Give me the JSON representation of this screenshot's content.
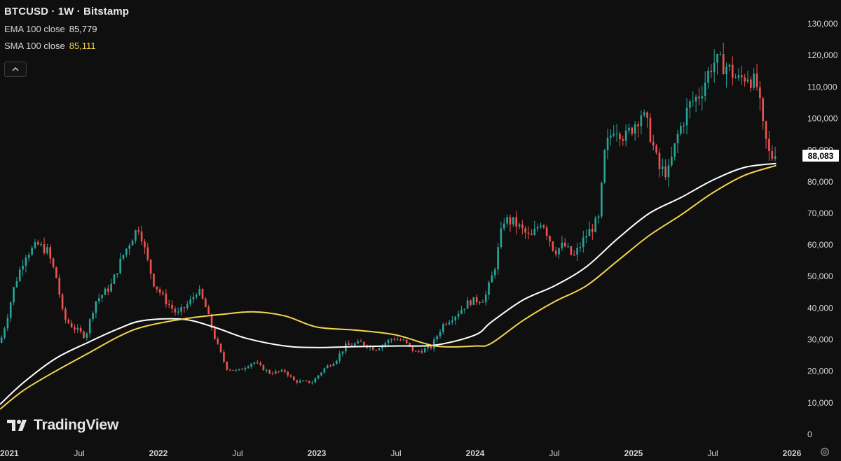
{
  "legend": {
    "title": "BTCUSD · 1W · Bitstamp",
    "ema_label": "EMA 100 close",
    "ema_value": "85,779",
    "sma_label": "SMA 100 close",
    "sma_value": "85,111"
  },
  "logo_text": "TradingView",
  "current_price_label": "88,083",
  "colors": {
    "background": "#0f0f0f",
    "up": "#26a69a",
    "down": "#ef5350",
    "ema": "#ffffff",
    "sma": "#f3d54e",
    "axis_text": "#d1d4dc"
  },
  "chart_data": {
    "type": "candlestick",
    "title": "BTCUSD · 1W · Bitstamp",
    "xlabel": "",
    "ylabel": "",
    "ylim": [
      0,
      130000
    ],
    "y_ticks": [
      0,
      10000,
      20000,
      30000,
      40000,
      50000,
      60000,
      70000,
      80000,
      90000,
      100000,
      110000,
      120000,
      130000
    ],
    "y_tick_labels": [
      "0",
      "10,000",
      "20,000",
      "30,000",
      "40,000",
      "50,000",
      "60,000",
      "70,000",
      "80,000",
      "90,000",
      "100,000",
      "110,000",
      "120,000",
      "130,000"
    ],
    "x_range": [
      2021.0,
      2026.0
    ],
    "x_ticks": [
      2021.0,
      2021.5,
      2022.0,
      2022.5,
      2023.0,
      2023.5,
      2024.0,
      2024.5,
      2025.0,
      2025.5,
      2026.0
    ],
    "x_tick_labels": [
      "2021",
      "Jul",
      "2022",
      "Jul",
      "2023",
      "Jul",
      "2024",
      "Jul",
      "2025",
      "Jul",
      "2026"
    ],
    "price_keyframes": [
      [
        2021.0,
        29000
      ],
      [
        2021.04,
        36000
      ],
      [
        2021.09,
        47000
      ],
      [
        2021.16,
        57000
      ],
      [
        2021.24,
        60000
      ],
      [
        2021.3,
        58000
      ],
      [
        2021.36,
        49000
      ],
      [
        2021.4,
        37000
      ],
      [
        2021.46,
        34000
      ],
      [
        2021.54,
        31000
      ],
      [
        2021.6,
        42000
      ],
      [
        2021.7,
        47000
      ],
      [
        2021.77,
        56000
      ],
      [
        2021.84,
        63000
      ],
      [
        2021.88,
        66000
      ],
      [
        2021.92,
        57000
      ],
      [
        2021.97,
        48000
      ],
      [
        2022.05,
        42000
      ],
      [
        2022.12,
        38000
      ],
      [
        2022.2,
        42000
      ],
      [
        2022.25,
        46000
      ],
      [
        2022.3,
        40000
      ],
      [
        2022.36,
        30000
      ],
      [
        2022.43,
        21000
      ],
      [
        2022.5,
        20000
      ],
      [
        2022.6,
        23000
      ],
      [
        2022.7,
        19500
      ],
      [
        2022.8,
        20000
      ],
      [
        2022.86,
        16800
      ],
      [
        2022.97,
        16500
      ],
      [
        2023.05,
        21000
      ],
      [
        2023.12,
        23500
      ],
      [
        2023.18,
        28000
      ],
      [
        2023.28,
        29000
      ],
      [
        2023.37,
        27000
      ],
      [
        2023.48,
        30500
      ],
      [
        2023.55,
        29500
      ],
      [
        2023.62,
        26000
      ],
      [
        2023.72,
        27500
      ],
      [
        2023.8,
        35000
      ],
      [
        2023.88,
        38000
      ],
      [
        2023.96,
        42000
      ],
      [
        2024.06,
        43000
      ],
      [
        2024.12,
        52000
      ],
      [
        2024.18,
        68000
      ],
      [
        2024.25,
        67000
      ],
      [
        2024.35,
        62000
      ],
      [
        2024.42,
        68000
      ],
      [
        2024.5,
        58000
      ],
      [
        2024.56,
        60000
      ],
      [
        2024.62,
        56000
      ],
      [
        2024.7,
        63000
      ],
      [
        2024.78,
        68000
      ],
      [
        2024.82,
        90000
      ],
      [
        2024.88,
        98000
      ],
      [
        2024.95,
        94000
      ],
      [
        2025.05,
        102000
      ],
      [
        2025.1,
        96000
      ],
      [
        2025.16,
        84000
      ],
      [
        2025.22,
        83000
      ],
      [
        2025.28,
        95000
      ],
      [
        2025.35,
        104000
      ],
      [
        2025.42,
        108000
      ],
      [
        2025.5,
        118000
      ],
      [
        2025.58,
        117000
      ],
      [
        2025.66,
        112000
      ],
      [
        2025.72,
        114000
      ],
      [
        2025.78,
        110000
      ],
      [
        2025.82,
        96000
      ],
      [
        2025.86,
        88000
      ],
      [
        2025.9,
        88083
      ]
    ],
    "series": [
      {
        "name": "EMA 100 close",
        "color": "#ffffff",
        "points": [
          [
            2021.0,
            9500
          ],
          [
            2021.15,
            16500
          ],
          [
            2021.35,
            24000
          ],
          [
            2021.55,
            29000
          ],
          [
            2021.75,
            33500
          ],
          [
            2021.9,
            36000
          ],
          [
            2022.15,
            36500
          ],
          [
            2022.35,
            34000
          ],
          [
            2022.55,
            30500
          ],
          [
            2022.8,
            28000
          ],
          [
            2023.0,
            27500
          ],
          [
            2023.25,
            27800
          ],
          [
            2023.5,
            28000
          ],
          [
            2023.75,
            28300
          ],
          [
            2024.0,
            31500
          ],
          [
            2024.1,
            35500
          ],
          [
            2024.3,
            42500
          ],
          [
            2024.5,
            47000
          ],
          [
            2024.7,
            53000
          ],
          [
            2024.9,
            62000
          ],
          [
            2025.1,
            70000
          ],
          [
            2025.3,
            75000
          ],
          [
            2025.5,
            80500
          ],
          [
            2025.7,
            84500
          ],
          [
            2025.9,
            85779
          ]
        ]
      },
      {
        "name": "SMA 100 close",
        "color": "#f3d54e",
        "points": [
          [
            2021.0,
            8000
          ],
          [
            2021.15,
            14000
          ],
          [
            2021.35,
            20000
          ],
          [
            2021.55,
            25500
          ],
          [
            2021.75,
            31000
          ],
          [
            2021.9,
            34000
          ],
          [
            2022.15,
            36500
          ],
          [
            2022.4,
            38000
          ],
          [
            2022.6,
            38800
          ],
          [
            2022.8,
            37500
          ],
          [
            2023.0,
            34000
          ],
          [
            2023.25,
            33000
          ],
          [
            2023.5,
            31500
          ],
          [
            2023.75,
            28000
          ],
          [
            2024.0,
            28000
          ],
          [
            2024.1,
            28800
          ],
          [
            2024.3,
            36000
          ],
          [
            2024.5,
            42000
          ],
          [
            2024.7,
            47000
          ],
          [
            2024.9,
            55000
          ],
          [
            2025.1,
            63000
          ],
          [
            2025.3,
            69500
          ],
          [
            2025.5,
            76500
          ],
          [
            2025.7,
            82000
          ],
          [
            2025.9,
            85111
          ]
        ]
      }
    ],
    "last_price": 88083
  }
}
